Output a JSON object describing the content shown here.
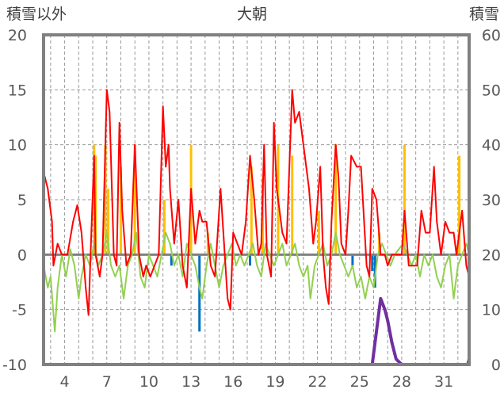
{
  "chart_data": {
    "type": "line",
    "title": "大朝",
    "ylabel_left": "積雪以外",
    "ylabel_right": "積雪",
    "ylim_left": [
      -10,
      20
    ],
    "ylim_right": [
      0,
      60
    ],
    "yticks_left": [
      "20",
      "15",
      "10",
      "5",
      "0",
      "-5",
      "-10"
    ],
    "yticks_right": [
      "60",
      "50",
      "40",
      "30",
      "20",
      "10",
      "0"
    ],
    "xlim": [
      2.5,
      32.8
    ],
    "xticks": [
      4,
      7,
      10,
      13,
      16,
      19,
      22,
      25,
      28,
      31
    ],
    "grid": true,
    "colors": {
      "red": "#ff0000",
      "green": "#92d050",
      "yellow": "#ffc000",
      "blue": "#0070c0",
      "purple": "#7030a0",
      "frame": "#808080"
    },
    "series": [
      {
        "name": "red line",
        "axis": "left",
        "points": [
          [
            2.5,
            7.5
          ],
          [
            2.8,
            6
          ],
          [
            3.1,
            3
          ],
          [
            3.2,
            -1
          ],
          [
            3.5,
            1
          ],
          [
            3.8,
            0
          ],
          [
            4.2,
            0
          ],
          [
            4.6,
            3
          ],
          [
            4.9,
            4.5
          ],
          [
            5.2,
            2
          ],
          [
            5.5,
            -3
          ],
          [
            5.7,
            -5.5
          ],
          [
            5.9,
            2
          ],
          [
            6.1,
            9
          ],
          [
            6.2,
            0
          ],
          [
            6.5,
            -2
          ],
          [
            6.7,
            0
          ],
          [
            7.0,
            15
          ],
          [
            7.2,
            13
          ],
          [
            7.5,
            0
          ],
          [
            7.7,
            -1
          ],
          [
            7.9,
            12
          ],
          [
            8.1,
            4
          ],
          [
            8.4,
            -1
          ],
          [
            8.7,
            0
          ],
          [
            9.0,
            10
          ],
          [
            9.3,
            0
          ],
          [
            9.6,
            -2
          ],
          [
            9.8,
            -1
          ],
          [
            10.1,
            -2
          ],
          [
            10.4,
            -1
          ],
          [
            10.7,
            0
          ],
          [
            11.0,
            13.5
          ],
          [
            11.2,
            8
          ],
          [
            11.4,
            10
          ],
          [
            11.5,
            6
          ],
          [
            11.8,
            1
          ],
          [
            12.1,
            5
          ],
          [
            12.4,
            -1
          ],
          [
            12.7,
            -3
          ],
          [
            13.0,
            6
          ],
          [
            13.3,
            1
          ],
          [
            13.6,
            4
          ],
          [
            13.8,
            3
          ],
          [
            14.1,
            3
          ],
          [
            14.4,
            -1
          ],
          [
            14.7,
            -2
          ],
          [
            15.1,
            6
          ],
          [
            15.4,
            0
          ],
          [
            15.6,
            -4
          ],
          [
            15.8,
            -5
          ],
          [
            16.0,
            2
          ],
          [
            16.3,
            1
          ],
          [
            16.6,
            0
          ],
          [
            16.9,
            3
          ],
          [
            17.2,
            9
          ],
          [
            17.5,
            5
          ],
          [
            17.8,
            0
          ],
          [
            18.0,
            1
          ],
          [
            18.2,
            10
          ],
          [
            18.4,
            0
          ],
          [
            18.7,
            -2
          ],
          [
            18.9,
            12
          ],
          [
            19.1,
            6
          ],
          [
            19.5,
            2
          ],
          [
            19.8,
            1
          ],
          [
            20.2,
            15
          ],
          [
            20.4,
            12
          ],
          [
            20.7,
            13
          ],
          [
            21.0,
            10
          ],
          [
            21.4,
            6
          ],
          [
            21.7,
            1
          ],
          [
            21.9,
            3
          ],
          [
            22.2,
            8
          ],
          [
            22.4,
            0
          ],
          [
            22.6,
            -3
          ],
          [
            22.8,
            -4.5
          ],
          [
            23.0,
            3
          ],
          [
            23.3,
            10
          ],
          [
            23.5,
            7
          ],
          [
            23.7,
            1
          ],
          [
            24.0,
            0
          ],
          [
            24.2,
            4
          ],
          [
            24.4,
            9
          ],
          [
            24.8,
            8
          ],
          [
            25.1,
            8
          ],
          [
            25.5,
            -1
          ],
          [
            25.7,
            -2
          ],
          [
            25.9,
            6
          ],
          [
            26.2,
            5
          ],
          [
            26.5,
            0
          ],
          [
            26.8,
            0
          ],
          [
            27.0,
            -1
          ],
          [
            27.3,
            0
          ],
          [
            27.6,
            0
          ],
          [
            28.0,
            0
          ],
          [
            28.2,
            4
          ],
          [
            28.5,
            -1
          ],
          [
            28.9,
            -1
          ],
          [
            29.1,
            -1
          ],
          [
            29.4,
            4
          ],
          [
            29.7,
            2
          ],
          [
            30.0,
            2
          ],
          [
            30.3,
            8
          ],
          [
            30.5,
            3
          ],
          [
            30.8,
            0
          ],
          [
            31.1,
            3
          ],
          [
            31.4,
            2
          ],
          [
            31.7,
            2
          ],
          [
            31.9,
            0
          ],
          [
            32.1,
            2
          ],
          [
            32.3,
            4
          ],
          [
            32.6,
            -1
          ],
          [
            32.8,
            -2
          ]
        ]
      },
      {
        "name": "green line",
        "axis": "left",
        "points": [
          [
            2.5,
            -1
          ],
          [
            2.8,
            -3
          ],
          [
            3.0,
            -2
          ],
          [
            3.3,
            -7
          ],
          [
            3.5,
            -3
          ],
          [
            3.8,
            0
          ],
          [
            4.1,
            -2
          ],
          [
            4.4,
            0.5
          ],
          [
            4.7,
            -1
          ],
          [
            5.0,
            -4
          ],
          [
            5.2,
            -2
          ],
          [
            5.5,
            0
          ],
          [
            5.8,
            -1
          ],
          [
            6.1,
            1
          ],
          [
            6.4,
            -1
          ],
          [
            6.7,
            0
          ],
          [
            7.0,
            2
          ],
          [
            7.3,
            -1
          ],
          [
            7.6,
            -2
          ],
          [
            7.9,
            -1
          ],
          [
            8.2,
            -4
          ],
          [
            8.5,
            -1
          ],
          [
            8.8,
            0
          ],
          [
            9.1,
            2
          ],
          [
            9.4,
            -2
          ],
          [
            9.7,
            -3
          ],
          [
            10.0,
            0
          ],
          [
            10.3,
            -1
          ],
          [
            10.6,
            -2
          ],
          [
            10.9,
            0
          ],
          [
            11.2,
            2
          ],
          [
            11.5,
            1
          ],
          [
            11.8,
            -1
          ],
          [
            12.1,
            0
          ],
          [
            12.4,
            -2
          ],
          [
            12.7,
            1
          ],
          [
            13.0,
            0
          ],
          [
            13.3,
            -1
          ],
          [
            13.6,
            -3
          ],
          [
            13.8,
            -4
          ],
          [
            14.1,
            -1
          ],
          [
            14.4,
            1
          ],
          [
            14.7,
            -1
          ],
          [
            15.0,
            -3
          ],
          [
            15.3,
            -1
          ],
          [
            15.6,
            0
          ],
          [
            15.9,
            1
          ],
          [
            16.2,
            -1
          ],
          [
            16.5,
            0
          ],
          [
            16.8,
            -1
          ],
          [
            17.1,
            0
          ],
          [
            17.4,
            1
          ],
          [
            17.7,
            -1
          ],
          [
            18.0,
            -2
          ],
          [
            18.3,
            1
          ],
          [
            18.6,
            0
          ],
          [
            18.9,
            -1
          ],
          [
            19.2,
            0
          ],
          [
            19.5,
            1
          ],
          [
            19.8,
            -1
          ],
          [
            20.1,
            0
          ],
          [
            20.4,
            1
          ],
          [
            20.7,
            -1
          ],
          [
            21.0,
            -2
          ],
          [
            21.3,
            -1
          ],
          [
            21.5,
            -4
          ],
          [
            21.8,
            -1
          ],
          [
            22.1,
            0
          ],
          [
            22.4,
            1
          ],
          [
            22.7,
            -1
          ],
          [
            23.0,
            0
          ],
          [
            23.3,
            2
          ],
          [
            23.6,
            0
          ],
          [
            23.9,
            -1
          ],
          [
            24.2,
            -2
          ],
          [
            24.5,
            -1
          ],
          [
            24.8,
            -3
          ],
          [
            25.1,
            -2
          ],
          [
            25.4,
            -4
          ],
          [
            25.7,
            -2
          ],
          [
            26.0,
            -3
          ],
          [
            26.3,
            0
          ],
          [
            26.6,
            1
          ],
          [
            26.9,
            0
          ],
          [
            27.2,
            -1
          ],
          [
            27.5,
            0
          ],
          [
            27.8,
            0.5
          ],
          [
            28.1,
            1
          ],
          [
            28.4,
            0
          ],
          [
            28.7,
            -1
          ],
          [
            29.0,
            0
          ],
          [
            29.3,
            -2
          ],
          [
            29.6,
            0
          ],
          [
            29.9,
            -1
          ],
          [
            30.2,
            0
          ],
          [
            30.5,
            -2
          ],
          [
            30.8,
            -3
          ],
          [
            31.1,
            -1
          ],
          [
            31.4,
            0
          ],
          [
            31.7,
            -4
          ],
          [
            32.0,
            -1
          ],
          [
            32.3,
            0
          ],
          [
            32.6,
            1
          ],
          [
            32.8,
            0
          ]
        ]
      },
      {
        "name": "purple line",
        "axis": "right",
        "points": [
          [
            2.5,
            0
          ],
          [
            25.9,
            0
          ],
          [
            26.3,
            8
          ],
          [
            26.5,
            12
          ],
          [
            26.8,
            10
          ],
          [
            27.0,
            8
          ],
          [
            27.3,
            4
          ],
          [
            27.6,
            1
          ],
          [
            28.0,
            0
          ],
          [
            32.7,
            0
          ],
          [
            32.8,
            1
          ]
        ]
      }
    ],
    "bars": [
      {
        "name": "yellow bars",
        "axis": "left",
        "points": [
          [
            6.1,
            10
          ],
          [
            6.2,
            9
          ],
          [
            6.9,
            10
          ],
          [
            7.1,
            6
          ],
          [
            8.0,
            8
          ],
          [
            9.0,
            10
          ],
          [
            11.1,
            5
          ],
          [
            13.0,
            10
          ],
          [
            14.2,
            2
          ],
          [
            17.3,
            8
          ],
          [
            18.1,
            7
          ],
          [
            19.2,
            10
          ],
          [
            20.2,
            9
          ],
          [
            22.1,
            4
          ],
          [
            23.3,
            10
          ],
          [
            26.4,
            2
          ],
          [
            28.2,
            10
          ],
          [
            32.1,
            9
          ]
        ]
      },
      {
        "name": "blue bars",
        "axis": "left",
        "points": [
          [
            11.6,
            -1
          ],
          [
            13.6,
            -7
          ],
          [
            17.2,
            -1
          ],
          [
            24.5,
            -1
          ],
          [
            25.9,
            -1.5
          ],
          [
            26.1,
            -3
          ]
        ]
      }
    ]
  }
}
